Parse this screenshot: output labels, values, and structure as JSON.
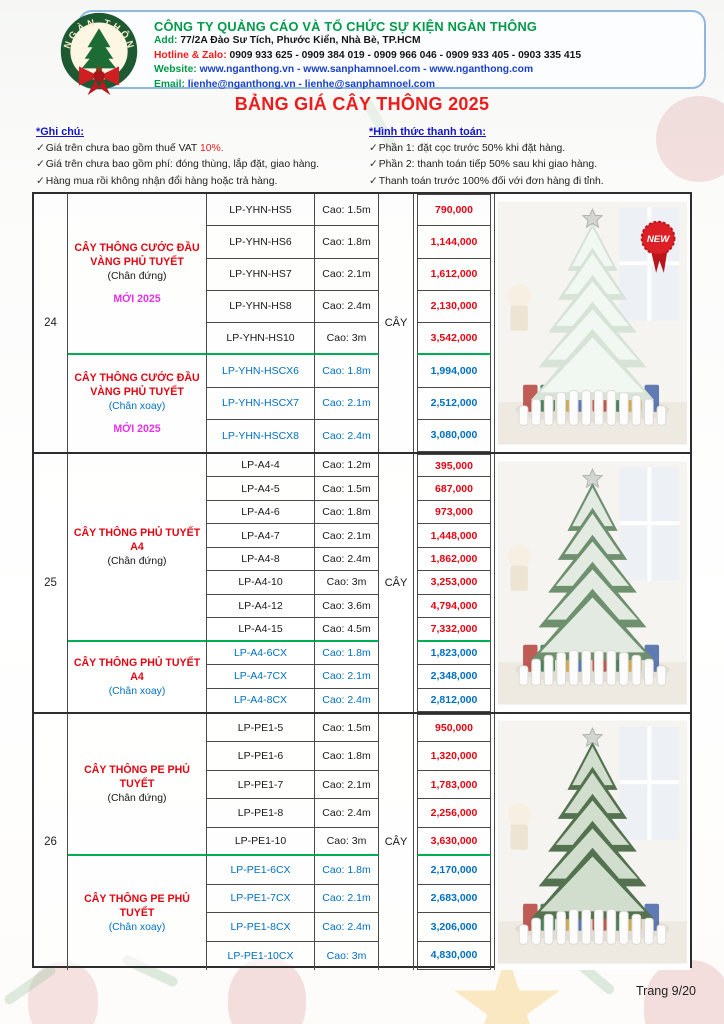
{
  "colors": {
    "green": "#009b48",
    "red": "#e30613",
    "blue": "#0070c0",
    "magenta": "#e532e5",
    "green_line": "#00b050"
  },
  "header": {
    "company": "CÔNG TY QUẢNG CÁO VÀ TỔ CHỨC SỰ KIỆN NGÀN THÔNG",
    "logo_text": "NGÀN THÔNG",
    "rows": [
      {
        "label": "Add:",
        "label_color": "green",
        "value": "77/2A Đào Sư Tích, Phước Kiển, Nhà Bè, TP.HCM",
        "value_color": "black"
      },
      {
        "label": "Hotline & Zalo:",
        "label_color": "red",
        "value": "0909 933 625 - 0909 384 019 - 0909 966 046 - 0909 933 405 - 0903 335 415",
        "value_color": "black"
      },
      {
        "label": "Website:",
        "label_color": "green",
        "value": "www.nganthong.vn - www.sanphamnoel.com - www.nganthong.com",
        "value_color": "blue",
        "link": true
      },
      {
        "label": "Email:",
        "label_color": "green",
        "value": "lienhe@nganthong.vn - lienhe@sanphamnoel.com",
        "value_color": "blue",
        "link": true
      }
    ]
  },
  "title": "BẢNG GIÁ CÂY THÔNG 2025",
  "notes": {
    "check": "✓",
    "left": {
      "title": "*Ghi chú:",
      "items": [
        [
          {
            "t": "Giá trên chưa bao gồm thuế VAT "
          },
          {
            "t": "10%.",
            "c": "red"
          }
        ],
        [
          {
            "t": "Giá trên chưa bao gồm phí: đóng thùng, lắp đặt, giao hàng."
          }
        ],
        [
          {
            "t": "Hàng mua rồi không nhận đổi hàng hoặc trả hàng."
          }
        ]
      ]
    },
    "right": {
      "title": "*Hình thức thanh toán:",
      "items": [
        [
          {
            "t": "Phần 1: đặt cọc trước 50% khi đặt hàng."
          }
        ],
        [
          {
            "t": "Phần 2: thanh toán tiếp 50% sau khi giao hàng."
          }
        ],
        [
          {
            "t": "Thanh toán trước 100% đối với đơn hàng đi tỉnh."
          }
        ]
      ]
    }
  },
  "table": {
    "sections": [
      {
        "id": "24",
        "unit": "CÂY",
        "image": {
          "variant": "snow",
          "badge": "NEW"
        },
        "groups": [
          {
            "name": "CÂY THÔNG CƯỚC ĐẦU VÀNG PHỦ TUYẾT",
            "subtitle": "(Chân đứng)",
            "tag": "MỚI 2025",
            "style": "black",
            "rows": [
              {
                "code": "LP-YHN-HS5",
                "height": "Cao: 1.5m",
                "price": "790,000"
              },
              {
                "code": "LP-YHN-HS6",
                "height": "Cao: 1.8m",
                "price": "1,144,000"
              },
              {
                "code": "LP-YHN-HS7",
                "height": "Cao: 2.1m",
                "price": "1,612,000"
              },
              {
                "code": "LP-YHN-HS8",
                "height": "Cao: 2.4m",
                "price": "2,130,000"
              },
              {
                "code": "LP-YHN-HS10",
                "height": "Cao: 3m",
                "price": "3,542,000"
              }
            ]
          },
          {
            "name": "CÂY THÔNG CƯỚC ĐẦU VÀNG PHỦ TUYẾT",
            "subtitle": "(Chân xoay)",
            "tag": "MỚI 2025",
            "style": "blue",
            "rows": [
              {
                "code": "LP-YHN-HSCX6",
                "height": "Cao: 1.8m",
                "price": "1,994,000"
              },
              {
                "code": "LP-YHN-HSCX7",
                "height": "Cao: 2.1m",
                "price": "2,512,000"
              },
              {
                "code": "LP-YHN-HSCX8",
                "height": "Cao: 2.4m",
                "price": "3,080,000"
              }
            ]
          }
        ]
      },
      {
        "id": "25",
        "unit": "CÂY",
        "image": {
          "variant": "flocked",
          "badge": null
        },
        "groups": [
          {
            "name": "CÂY THÔNG PHỦ TUYẾT A4",
            "subtitle": "(Chân đứng)",
            "tag": null,
            "style": "black",
            "rows": [
              {
                "code": "LP-A4-4",
                "height": "Cao: 1.2m",
                "price": "395,000"
              },
              {
                "code": "LP-A4-5",
                "height": "Cao: 1.5m",
                "price": "687,000"
              },
              {
                "code": "LP-A4-6",
                "height": "Cao: 1.8m",
                "price": "973,000"
              },
              {
                "code": "LP-A4-7",
                "height": "Cao: 2.1m",
                "price": "1,448,000"
              },
              {
                "code": "LP-A4-8",
                "height": "Cao: 2.4m",
                "price": "1,862,000"
              },
              {
                "code": "LP-A4-10",
                "height": "Cao: 3m",
                "price": "3,253,000"
              },
              {
                "code": "LP-A4-12",
                "height": "Cao: 3.6m",
                "price": "4,794,000"
              },
              {
                "code": "LP-A4-15",
                "height": "Cao: 4.5m",
                "price": "7,332,000"
              }
            ]
          },
          {
            "name": "CÂY THÔNG PHỦ TUYẾT A4",
            "subtitle": "(Chân xoay)",
            "tag": null,
            "style": "blue",
            "rows": [
              {
                "code": "LP-A4-6CX",
                "height": "Cao: 1.8m",
                "price": "1,823,000"
              },
              {
                "code": "LP-A4-7CX",
                "height": "Cao: 2.1m",
                "price": "2,348,000"
              },
              {
                "code": "LP-A4-8CX",
                "height": "Cao: 2.4m",
                "price": "2,812,000"
              }
            ]
          }
        ]
      },
      {
        "id": "26",
        "unit": "CÂY",
        "image": {
          "variant": "pe",
          "badge": null
        },
        "groups": [
          {
            "name": "CÂY THÔNG PE PHỦ TUYẾT",
            "subtitle": "(Chân đứng)",
            "tag": null,
            "style": "black",
            "rows": [
              {
                "code": "LP-PE1-5",
                "height": "Cao: 1.5m",
                "price": "950,000"
              },
              {
                "code": "LP-PE1-6",
                "height": "Cao: 1.8m",
                "price": "1,320,000"
              },
              {
                "code": "LP-PE1-7",
                "height": "Cao: 2.1m",
                "price": "1,783,000"
              },
              {
                "code": "LP-PE1-8",
                "height": "Cao: 2.4m",
                "price": "2,256,000"
              },
              {
                "code": "LP-PE1-10",
                "height": "Cao: 3m",
                "price": "3,630,000"
              }
            ]
          },
          {
            "name": "CÂY THÔNG PE PHỦ TUYẾT",
            "subtitle": "(Chân xoay)",
            "tag": null,
            "style": "blue",
            "rows": [
              {
                "code": "LP-PE1-6CX",
                "height": "Cao: 1.8m",
                "price": "2,170,000"
              },
              {
                "code": "LP-PE1-7CX",
                "height": "Cao: 2.1m",
                "price": "2,683,000"
              },
              {
                "code": "LP-PE1-8CX",
                "height": "Cao: 2.4m",
                "price": "3,206,000"
              },
              {
                "code": "LP-PE1-10CX",
                "height": "Cao: 3m",
                "price": "4,830,000"
              }
            ]
          }
        ]
      }
    ]
  },
  "footer": {
    "page": "Trang 9/20"
  }
}
